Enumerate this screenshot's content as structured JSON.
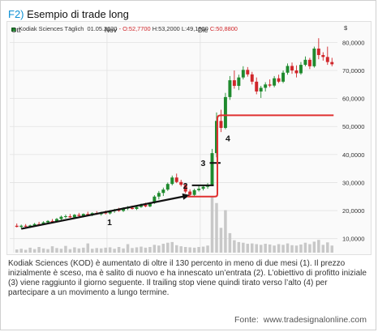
{
  "figure": {
    "label": "F2)",
    "title": "Esempio di trade long"
  },
  "header": {
    "name": "Kodiak Sciences Täglich",
    "date": "01.05.2020",
    "open": "O:52,7700",
    "high": "H:53,2000",
    "low": "L:49,1600",
    "close": "C:50,8800",
    "dash": "-"
  },
  "chart_data": {
    "type": "candlestick",
    "currency_symbol": "$",
    "x_tick_labels": [
      "Ott",
      "Nov",
      "Dic"
    ],
    "x_tick_index": [
      0,
      21,
      42
    ],
    "y_tick_labels": [
      "10,0000",
      "20,0000",
      "30,0000",
      "40,0000",
      "50,0000",
      "60,0000",
      "70,0000",
      "80,0000"
    ],
    "ylim": [
      5,
      83
    ],
    "grid": true,
    "colors": {
      "up": "#1f8a2e",
      "down": "#d0262a",
      "volume": "#c8c8c8",
      "trend_line": "#111111",
      "trailing_stop": "#e03030"
    },
    "candles": [
      {
        "o": 14.6,
        "h": 15.4,
        "l": 14.0,
        "c": 14.2
      },
      {
        "o": 14.2,
        "h": 15.0,
        "l": 13.6,
        "c": 14.6
      },
      {
        "o": 14.6,
        "h": 15.2,
        "l": 14.0,
        "c": 14.3
      },
      {
        "o": 14.3,
        "h": 15.0,
        "l": 13.8,
        "c": 14.7
      },
      {
        "o": 14.7,
        "h": 15.6,
        "l": 14.3,
        "c": 15.2
      },
      {
        "o": 15.2,
        "h": 16.0,
        "l": 14.6,
        "c": 15.0
      },
      {
        "o": 15.0,
        "h": 16.2,
        "l": 14.8,
        "c": 15.8
      },
      {
        "o": 15.8,
        "h": 16.6,
        "l": 15.2,
        "c": 16.3
      },
      {
        "o": 16.3,
        "h": 17.0,
        "l": 15.6,
        "c": 16.0
      },
      {
        "o": 16.0,
        "h": 17.4,
        "l": 15.8,
        "c": 17.0
      },
      {
        "o": 17.0,
        "h": 18.2,
        "l": 16.6,
        "c": 17.8
      },
      {
        "o": 17.8,
        "h": 18.6,
        "l": 17.2,
        "c": 18.0
      },
      {
        "o": 18.0,
        "h": 18.8,
        "l": 17.4,
        "c": 17.6
      },
      {
        "o": 17.6,
        "h": 18.8,
        "l": 17.2,
        "c": 18.5
      },
      {
        "o": 18.5,
        "h": 19.2,
        "l": 17.8,
        "c": 18.1
      },
      {
        "o": 18.1,
        "h": 19.0,
        "l": 17.6,
        "c": 18.8
      },
      {
        "o": 18.8,
        "h": 19.6,
        "l": 18.2,
        "c": 18.4
      },
      {
        "o": 18.4,
        "h": 19.4,
        "l": 18.0,
        "c": 19.1
      },
      {
        "o": 19.1,
        "h": 19.8,
        "l": 18.5,
        "c": 18.7
      },
      {
        "o": 18.7,
        "h": 19.6,
        "l": 18.2,
        "c": 19.3
      },
      {
        "o": 19.3,
        "h": 20.0,
        "l": 18.6,
        "c": 19.0
      },
      {
        "o": 19.0,
        "h": 20.2,
        "l": 18.6,
        "c": 19.8
      },
      {
        "o": 19.8,
        "h": 20.6,
        "l": 19.2,
        "c": 20.2
      },
      {
        "o": 20.2,
        "h": 21.0,
        "l": 19.6,
        "c": 19.9
      },
      {
        "o": 19.9,
        "h": 21.2,
        "l": 19.5,
        "c": 20.8
      },
      {
        "o": 20.8,
        "h": 21.6,
        "l": 20.2,
        "c": 21.0
      },
      {
        "o": 21.0,
        "h": 21.8,
        "l": 20.4,
        "c": 20.6
      },
      {
        "o": 20.6,
        "h": 21.5,
        "l": 20.2,
        "c": 21.3
      },
      {
        "o": 21.3,
        "h": 22.5,
        "l": 21.0,
        "c": 22.0
      },
      {
        "o": 22.0,
        "h": 22.8,
        "l": 21.2,
        "c": 21.5
      },
      {
        "o": 21.5,
        "h": 23.0,
        "l": 21.2,
        "c": 22.7
      },
      {
        "o": 22.7,
        "h": 25.5,
        "l": 22.4,
        "c": 25.0
      },
      {
        "o": 25.0,
        "h": 27.0,
        "l": 24.0,
        "c": 26.3
      },
      {
        "o": 26.3,
        "h": 28.2,
        "l": 25.2,
        "c": 27.5
      },
      {
        "o": 27.5,
        "h": 30.0,
        "l": 27.0,
        "c": 29.5
      },
      {
        "o": 29.5,
        "h": 32.5,
        "l": 29.0,
        "c": 31.8
      },
      {
        "o": 31.8,
        "h": 33.2,
        "l": 29.8,
        "c": 30.2
      },
      {
        "o": 30.2,
        "h": 31.0,
        "l": 28.6,
        "c": 29.2
      },
      {
        "o": 29.2,
        "h": 29.8,
        "l": 26.2,
        "c": 26.8
      },
      {
        "o": 26.8,
        "h": 27.6,
        "l": 25.2,
        "c": 25.6
      },
      {
        "o": 25.6,
        "h": 27.8,
        "l": 25.2,
        "c": 27.3
      },
      {
        "o": 27.3,
        "h": 29.0,
        "l": 26.8,
        "c": 27.8
      },
      {
        "o": 27.8,
        "h": 29.2,
        "l": 27.2,
        "c": 28.5
      },
      {
        "o": 28.5,
        "h": 29.8,
        "l": 27.8,
        "c": 29.2
      },
      {
        "o": 29.2,
        "h": 42.0,
        "l": 28.8,
        "c": 40.5
      },
      {
        "o": 40.5,
        "h": 55.0,
        "l": 39.0,
        "c": 52.0
      },
      {
        "o": 52.0,
        "h": 56.0,
        "l": 48.0,
        "c": 49.5
      },
      {
        "o": 49.5,
        "h": 62.0,
        "l": 49.0,
        "c": 60.5
      },
      {
        "o": 60.5,
        "h": 68.0,
        "l": 59.5,
        "c": 66.5
      },
      {
        "o": 66.5,
        "h": 70.0,
        "l": 63.5,
        "c": 64.5
      },
      {
        "o": 64.5,
        "h": 68.5,
        "l": 63.0,
        "c": 67.5
      },
      {
        "o": 67.5,
        "h": 71.5,
        "l": 66.8,
        "c": 70.2
      },
      {
        "o": 70.2,
        "h": 71.2,
        "l": 67.8,
        "c": 68.6
      },
      {
        "o": 68.6,
        "h": 69.5,
        "l": 65.0,
        "c": 66.0
      },
      {
        "o": 66.0,
        "h": 67.5,
        "l": 61.5,
        "c": 62.5
      },
      {
        "o": 62.5,
        "h": 64.5,
        "l": 60.2,
        "c": 63.8
      },
      {
        "o": 63.8,
        "h": 65.8,
        "l": 62.5,
        "c": 65.0
      },
      {
        "o": 65.0,
        "h": 66.8,
        "l": 64.0,
        "c": 64.6
      },
      {
        "o": 64.6,
        "h": 68.0,
        "l": 64.0,
        "c": 67.2
      },
      {
        "o": 67.2,
        "h": 68.5,
        "l": 65.5,
        "c": 66.0
      },
      {
        "o": 66.0,
        "h": 70.0,
        "l": 65.5,
        "c": 69.2
      },
      {
        "o": 69.2,
        "h": 72.5,
        "l": 68.5,
        "c": 71.6
      },
      {
        "o": 71.6,
        "h": 72.8,
        "l": 68.8,
        "c": 70.0
      },
      {
        "o": 70.0,
        "h": 71.8,
        "l": 67.5,
        "c": 69.0
      },
      {
        "o": 69.0,
        "h": 73.0,
        "l": 68.5,
        "c": 72.0
      },
      {
        "o": 72.0,
        "h": 75.0,
        "l": 71.5,
        "c": 73.8
      },
      {
        "o": 73.8,
        "h": 74.5,
        "l": 70.5,
        "c": 71.5
      },
      {
        "o": 71.5,
        "h": 78.5,
        "l": 71.0,
        "c": 77.8
      },
      {
        "o": 77.8,
        "h": 81.5,
        "l": 74.0,
        "c": 75.5
      },
      {
        "o": 75.5,
        "h": 76.5,
        "l": 73.5,
        "c": 74.8
      },
      {
        "o": 74.8,
        "h": 78.5,
        "l": 72.0,
        "c": 73.0
      },
      {
        "o": 73.0,
        "h": 74.5,
        "l": 71.5,
        "c": 72.2
      }
    ],
    "volume": [
      0.9,
      1.1,
      0.8,
      1.4,
      1.0,
      1.6,
      1.2,
      1.0,
      1.8,
      1.3,
      1.1,
      1.9,
      1.0,
      1.5,
      1.2,
      1.4,
      2.6,
      1.1,
      1.3,
      1.2,
      1.4,
      1.5,
      1.1,
      1.6,
      1.2,
      2.4,
      1.3,
      1.5,
      1.7,
      1.4,
      1.6,
      2.2,
      2.0,
      2.5,
      2.8,
      3.0,
      2.1,
      1.8,
      1.6,
      1.5,
      1.4,
      1.6,
      1.7,
      2.0,
      16.0,
      14.0,
      7.0,
      12.0,
      5.5,
      3.5,
      3.0,
      2.8,
      2.5,
      2.6,
      2.4,
      2.2,
      2.5,
      2.3,
      2.0,
      2.4,
      2.2,
      2.6,
      2.1,
      2.0,
      2.3,
      2.8,
      2.4,
      3.1,
      3.6,
      2.2,
      2.9,
      2.0
    ],
    "annotations": [
      {
        "id": "1",
        "label": "1",
        "note": "trend line arrow",
        "from_index": 1,
        "from_value": 13.5,
        "to_index": 39,
        "to_value": 25.5
      },
      {
        "id": "2",
        "label": "2",
        "note": "entry level",
        "from_index": 40,
        "to_index": 44,
        "value": 29.0
      },
      {
        "id": "3",
        "label": "3",
        "note": "initial profit target",
        "from_index": 44,
        "to_index": 47,
        "value": 37.0
      },
      {
        "id": "4",
        "label": "4",
        "note": "trailing stop",
        "base_value": 25.0,
        "base_from_index": 39,
        "step_index": 45,
        "top_value": 54.0,
        "top_to_index": 71
      }
    ]
  },
  "caption": "Kodiak Sciences (KOD) è aumentato di oltre il 130 percento in meno di due mesi (1). Il prezzo inizialmente è sceso, ma è salito di nuovo e ha innescato un’entrata (2). L’obiettivo di profitto iniziale (3) viene raggiunto il giorno seguente. Il trailing stop viene quindi tirato verso l’alto (4) per partecipare a un movimento a lungo termine.",
  "source": {
    "prefix": "Fonte:",
    "url": "www.tradesignalonline.com"
  }
}
